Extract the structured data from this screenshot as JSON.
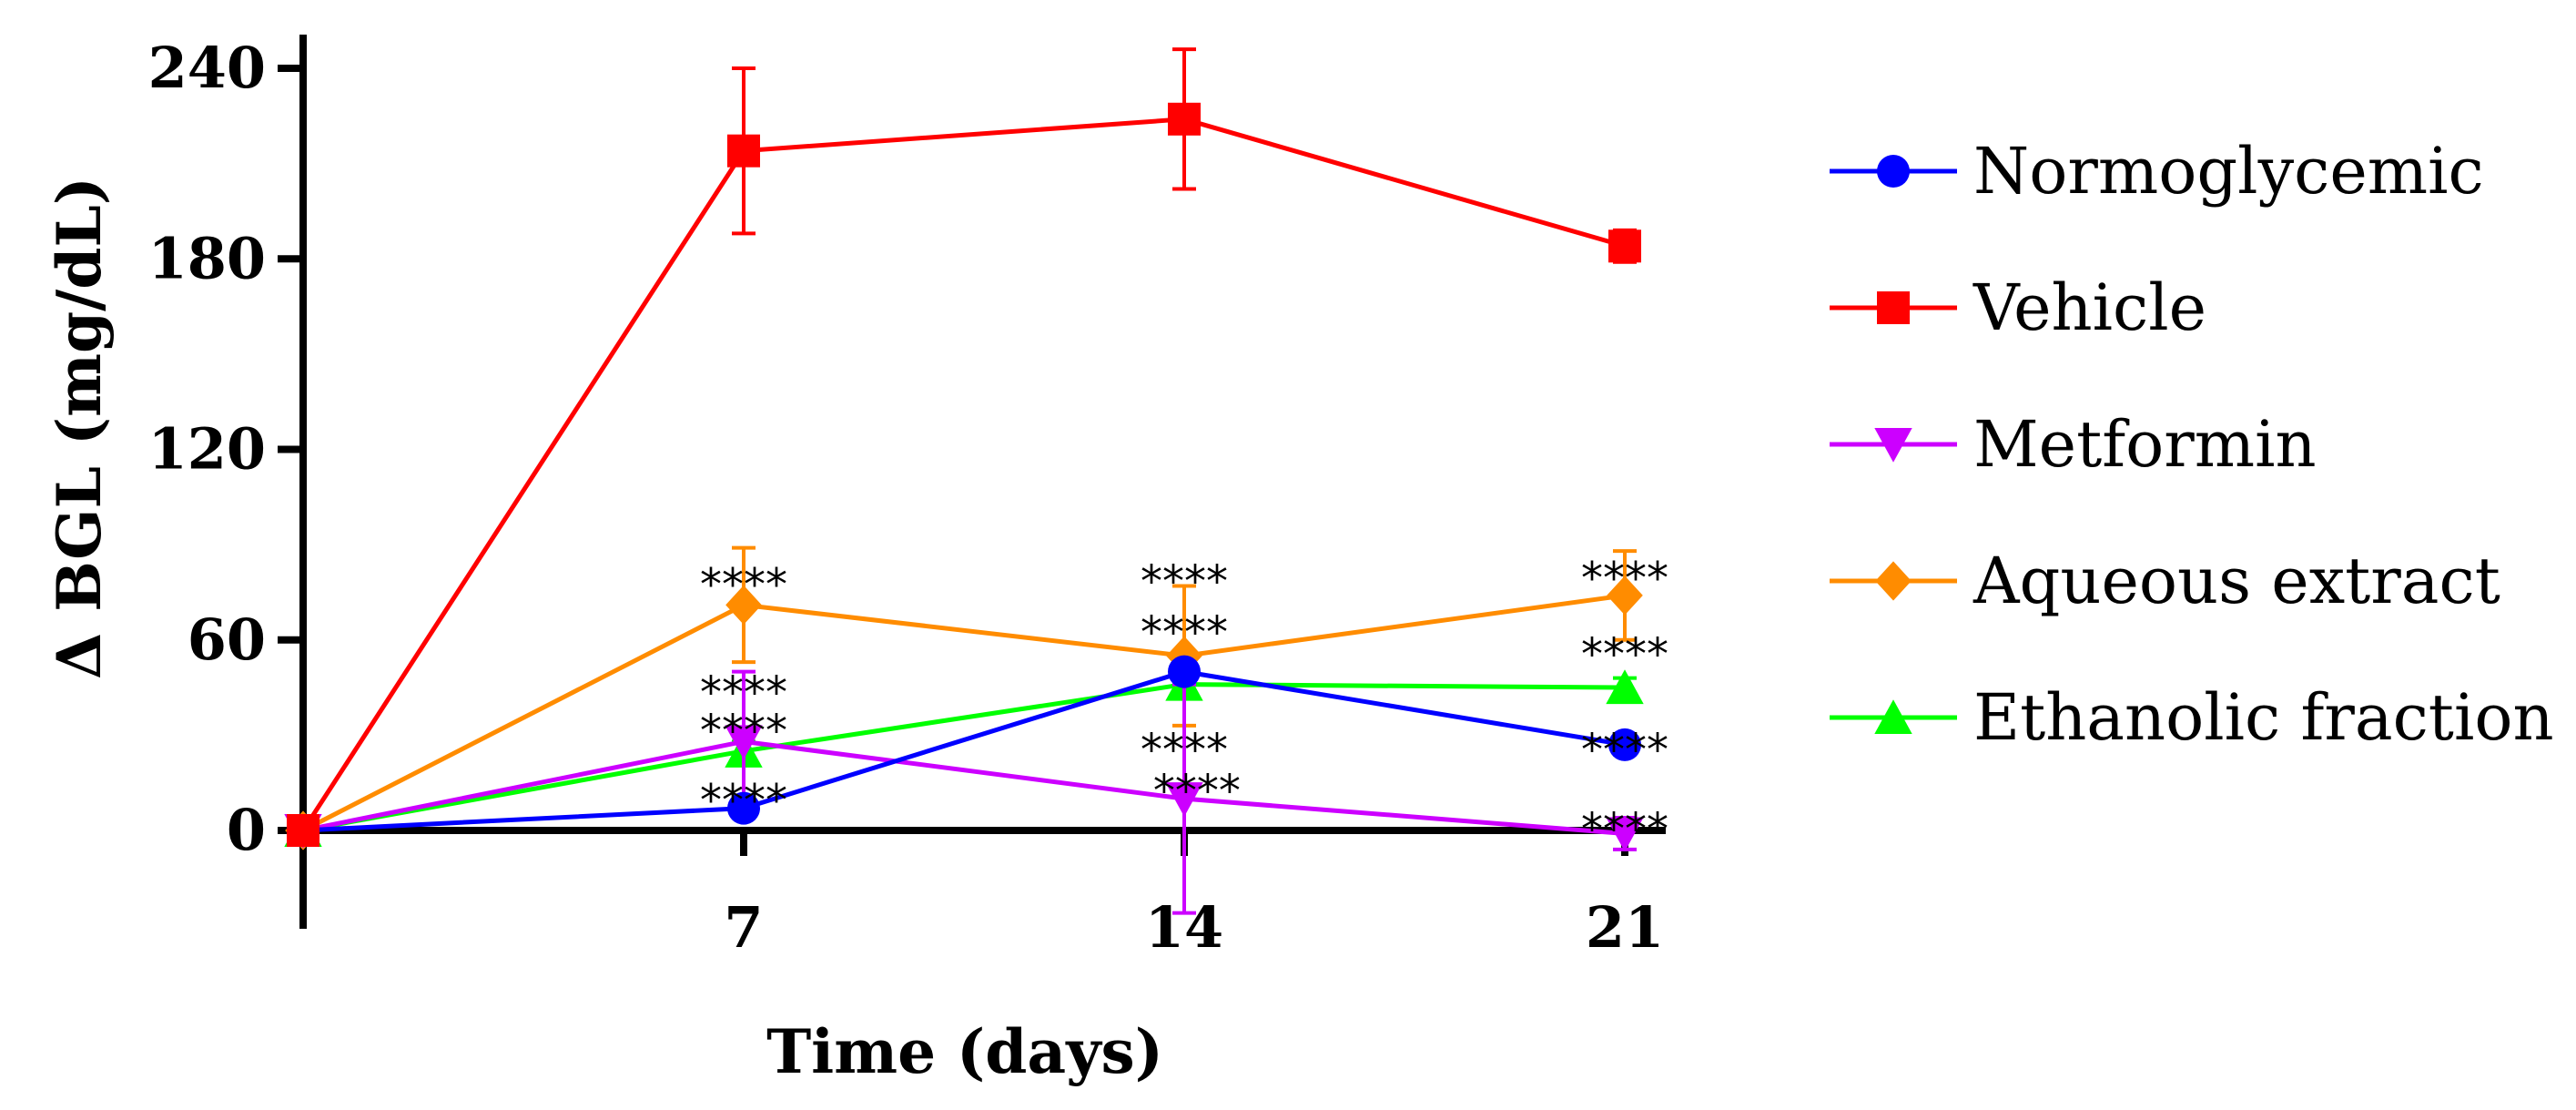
{
  "chart_data": {
    "type": "line",
    "xlabel": "Time (days)",
    "ylabel": "Δ BGL (mg/dL)",
    "xlim": [
      0,
      21
    ],
    "ylim": [
      -30,
      240
    ],
    "x_ticks": [
      7,
      14,
      21
    ],
    "y_ticks": [
      0,
      60,
      120,
      180,
      240
    ],
    "x": [
      0,
      7,
      14,
      21
    ],
    "grid": false,
    "legend_position": "right",
    "series": [
      {
        "name": "Normoglycemic",
        "color": "#0000ff",
        "marker": "circle",
        "values": [
          0,
          7,
          50,
          27
        ],
        "errors": [
          0,
          3,
          3,
          3
        ]
      },
      {
        "name": "Vehicle",
        "color": "#ff0000",
        "marker": "square",
        "values": [
          0,
          214,
          224,
          184
        ],
        "errors": [
          0,
          26,
          22,
          5
        ]
      },
      {
        "name": "Metformin",
        "color": "#cc00ff",
        "marker": "triangle-down",
        "values": [
          0,
          28,
          10,
          -1
        ],
        "errors": [
          0,
          22,
          36,
          5
        ]
      },
      {
        "name": "Aqueous extract",
        "color": "#ff8c00",
        "marker": "diamond",
        "values": [
          0,
          71,
          55,
          74
        ],
        "errors": [
          0,
          18,
          22,
          14
        ]
      },
      {
        "name": "Ethanolic fraction",
        "color": "#00ff00",
        "marker": "triangle-up",
        "values": [
          0,
          25,
          46,
          45
        ],
        "errors": [
          0,
          3,
          3,
          3
        ]
      }
    ],
    "annotations": [
      {
        "text": "****",
        "x": 7,
        "y": 79
      },
      {
        "text": "****",
        "x": 7,
        "y": 45
      },
      {
        "text": "****",
        "x": 7,
        "y": 33
      },
      {
        "text": "****",
        "x": 7,
        "y": 11
      },
      {
        "text": "****",
        "x": 14,
        "y": 80
      },
      {
        "text": "****",
        "x": 14,
        "y": 64
      },
      {
        "text": "****",
        "x": 14,
        "y": 27
      },
      {
        "text": "****",
        "x": 14.2,
        "y": 14
      },
      {
        "text": "****",
        "x": 21,
        "y": 81
      },
      {
        "text": "****",
        "x": 21,
        "y": 57
      },
      {
        "text": "****",
        "x": 21,
        "y": 27
      },
      {
        "text": "****",
        "x": 21,
        "y": 2
      }
    ]
  }
}
